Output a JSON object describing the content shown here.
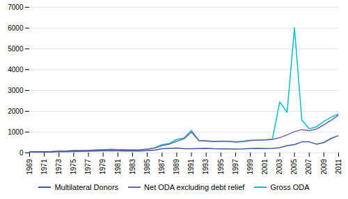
{
  "chart_data": {
    "type": "line",
    "x": [
      1969,
      1970,
      1971,
      1972,
      1973,
      1974,
      1975,
      1976,
      1977,
      1978,
      1979,
      1980,
      1981,
      1982,
      1983,
      1984,
      1985,
      1986,
      1987,
      1988,
      1989,
      1990,
      1991,
      1992,
      1993,
      1994,
      1995,
      1996,
      1997,
      1998,
      1999,
      2000,
      2001,
      2002,
      2003,
      2004,
      2005,
      2006,
      2007,
      2008,
      2009,
      2010,
      2011
    ],
    "series": [
      {
        "name": "Multilateral Donors",
        "color": "#3a57a0",
        "values": [
          30,
          35,
          40,
          45,
          55,
          60,
          70,
          75,
          80,
          90,
          100,
          110,
          100,
          95,
          90,
          95,
          110,
          130,
          200,
          220,
          230,
          200,
          200,
          210,
          220,
          200,
          190,
          195,
          180,
          190,
          210,
          220,
          210,
          220,
          250,
          350,
          400,
          530,
          530,
          420,
          500,
          700,
          830
        ]
      },
      {
        "name": "Net ODA excluding debt relief",
        "color": "#7b5ea7",
        "values": [
          50,
          55,
          60,
          65,
          80,
          90,
          110,
          115,
          120,
          135,
          150,
          165,
          155,
          145,
          140,
          150,
          175,
          230,
          350,
          420,
          560,
          680,
          1000,
          590,
          570,
          545,
          555,
          560,
          520,
          545,
          590,
          610,
          620,
          650,
          730,
          870,
          1020,
          1120,
          1070,
          1150,
          1350,
          1570,
          1820
        ]
      },
      {
        "name": "Gross ODA",
        "color": "#00c0d0",
        "values": [
          50,
          55,
          60,
          65,
          80,
          90,
          115,
          120,
          125,
          140,
          155,
          170,
          158,
          148,
          142,
          153,
          180,
          245,
          390,
          460,
          650,
          720,
          1080,
          600,
          580,
          555,
          570,
          560,
          535,
          560,
          605,
          620,
          635,
          665,
          2450,
          1950,
          6020,
          1580,
          1160,
          1260,
          1510,
          1720,
          1870
        ]
      }
    ],
    "xlim": [
      1969,
      2011
    ],
    "xticks": [
      1969,
      1971,
      1973,
      1975,
      1977,
      1979,
      1981,
      1983,
      1985,
      1987,
      1989,
      1991,
      1993,
      1995,
      1997,
      1999,
      2001,
      2003,
      2005,
      2007,
      2009,
      2011
    ],
    "ylim": [
      0,
      7000
    ],
    "yticks": [
      0,
      1000,
      2000,
      3000,
      4000,
      5000,
      6000,
      7000
    ],
    "grid": true,
    "legend": "bottom"
  }
}
